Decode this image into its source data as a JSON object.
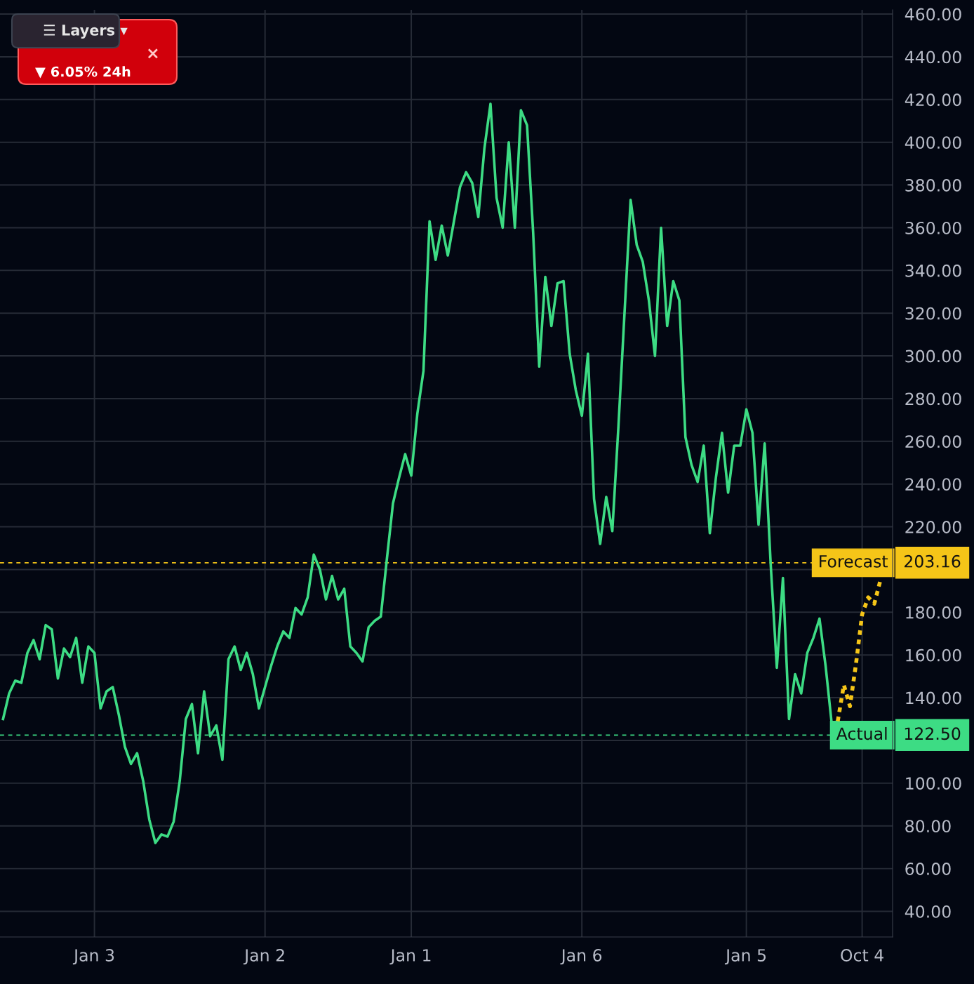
{
  "chart_data": {
    "type": "line",
    "categories": [
      null,
      null,
      null,
      null,
      null,
      null,
      null,
      null,
      null,
      null,
      null,
      null,
      null,
      null,
      null,
      "Jan 3",
      null,
      null,
      null,
      null,
      null,
      null,
      null,
      null,
      null,
      null,
      null,
      null,
      null,
      null,
      null,
      null,
      null,
      null,
      null,
      null,
      null,
      null,
      null,
      null,
      null,
      null,
      null,
      "Jan 2",
      null,
      null,
      null,
      null,
      null,
      null,
      null,
      null,
      null,
      null,
      null,
      null,
      null,
      null,
      null,
      null,
      null,
      null,
      null,
      null,
      null,
      null,
      null,
      "Jan 1",
      null,
      null,
      null,
      null,
      null,
      null,
      null,
      null,
      null,
      null,
      null,
      null,
      null,
      null,
      null,
      null,
      null,
      null,
      null,
      null,
      null,
      null,
      null,
      null,
      null,
      null,
      null,
      "Jan 6",
      null,
      null,
      null,
      null,
      null,
      null,
      null,
      null,
      null,
      null,
      null,
      null,
      null,
      null,
      null,
      null,
      null,
      null,
      null,
      null,
      null,
      null,
      null,
      null,
      null,
      null,
      "Jan 5",
      null,
      null,
      null,
      null,
      null,
      null,
      null,
      null,
      null,
      null,
      null,
      null,
      null,
      null,
      null,
      null,
      null,
      null,
      "Oct 4",
      null,
      null,
      null
    ],
    "series": [
      {
        "color": "#3ddc84",
        "line_style": "solid",
        "values": [
          130,
          142,
          148,
          147,
          161,
          167,
          158,
          174,
          172,
          149,
          163,
          159,
          168,
          147,
          164,
          161,
          135,
          143,
          145,
          132,
          117,
          109,
          114,
          101,
          83,
          72,
          76,
          75,
          82,
          101,
          130,
          137,
          114,
          143,
          122,
          127,
          111,
          158,
          164,
          153,
          161,
          151,
          135,
          145,
          155,
          164,
          171,
          168,
          182,
          179,
          187,
          207,
          200,
          186,
          197,
          186,
          191,
          164,
          161,
          157,
          173,
          176,
          178,
          205,
          231,
          243,
          254,
          244,
          273,
          293,
          363,
          345,
          361,
          347,
          363,
          379,
          386,
          381,
          365,
          397,
          418,
          374,
          360,
          400,
          360,
          415,
          408,
          358,
          295,
          337,
          314,
          334,
          335,
          301,
          284,
          272,
          301,
          233,
          212,
          234,
          218,
          267,
          320,
          373,
          352,
          344,
          326,
          300,
          360,
          314,
          335,
          326,
          262,
          249,
          241,
          258,
          217,
          243,
          264,
          236,
          258,
          258,
          275,
          264,
          221,
          259,
          202,
          154,
          196,
          130,
          151,
          142,
          161,
          168,
          177,
          155,
          128,
          129,
          null,
          null,
          null,
          null,
          null,
          null,
          null
        ]
      },
      {
        "color": "#f5c518",
        "line_style": "dotted",
        "values": [
          null,
          null,
          null,
          null,
          null,
          null,
          null,
          null,
          null,
          null,
          null,
          null,
          null,
          null,
          null,
          null,
          null,
          null,
          null,
          null,
          null,
          null,
          null,
          null,
          null,
          null,
          null,
          null,
          null,
          null,
          null,
          null,
          null,
          null,
          null,
          null,
          null,
          null,
          null,
          null,
          null,
          null,
          null,
          null,
          null,
          null,
          null,
          null,
          null,
          null,
          null,
          null,
          null,
          null,
          null,
          null,
          null,
          null,
          null,
          null,
          null,
          null,
          null,
          null,
          null,
          null,
          null,
          null,
          null,
          null,
          null,
          null,
          null,
          null,
          null,
          null,
          null,
          null,
          null,
          null,
          null,
          null,
          null,
          null,
          null,
          null,
          null,
          null,
          null,
          null,
          null,
          null,
          null,
          null,
          null,
          null,
          null,
          null,
          null,
          null,
          null,
          null,
          null,
          null,
          null,
          null,
          null,
          null,
          null,
          null,
          null,
          null,
          null,
          null,
          null,
          null,
          null,
          null,
          null,
          null,
          null,
          null,
          null,
          null,
          null,
          null,
          null,
          null,
          null,
          null,
          null,
          null,
          null,
          null,
          null,
          null,
          null,
          129,
          146,
          136,
          156,
          179,
          187,
          184,
          195
        ]
      }
    ],
    "ylim": [
      28,
      462
    ],
    "yticks": [
      {
        "value": 40,
        "label": "40.00"
      },
      {
        "value": 60,
        "label": "60.00"
      },
      {
        "value": 80,
        "label": "80.00"
      },
      {
        "value": 100,
        "label": "100.00"
      },
      {
        "value": 120,
        "label": null
      },
      {
        "value": 140,
        "label": "140.00"
      },
      {
        "value": 160,
        "label": "160.00"
      },
      {
        "value": 180,
        "label": "180.00"
      },
      {
        "value": 200,
        "label": null
      },
      {
        "value": 220,
        "label": "220.00"
      },
      {
        "value": 240,
        "label": "240.00"
      },
      {
        "value": 260,
        "label": "260.00"
      },
      {
        "value": 280,
        "label": "280.00"
      },
      {
        "value": 300,
        "label": "300.00"
      },
      {
        "value": 320,
        "label": "320.00"
      },
      {
        "value": 340,
        "label": "340.00"
      },
      {
        "value": 360,
        "label": "360.00"
      },
      {
        "value": 380,
        "label": "380.00"
      },
      {
        "value": 400,
        "label": "400.00"
      },
      {
        "value": 420,
        "label": "420.00"
      },
      {
        "value": 440,
        "label": "440.00"
      },
      {
        "value": 460,
        "label": "460.00"
      }
    ],
    "ref_lines": [
      {
        "axis": "y",
        "value": 203.16,
        "label": "Forecast",
        "color": "#f5c518",
        "line_style": "dashed"
      },
      {
        "axis": "y",
        "value": 122.5,
        "label": "Actual",
        "color": "#3ddc84",
        "line_style": "dashed"
      }
    ],
    "annotations": [
      "☰ Layers ▾",
      "▼ 6.05% 24h",
      "×",
      "203.16",
      "122.50"
    ],
    "grid": true,
    "legend": false
  }
}
